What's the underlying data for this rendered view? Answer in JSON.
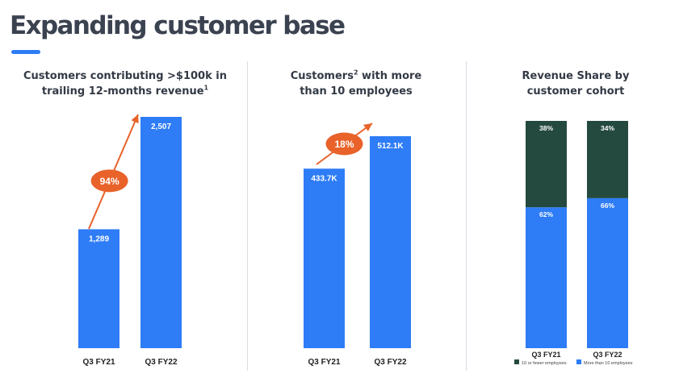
{
  "header": {
    "title": "Expanding customer base"
  },
  "colors": {
    "blue": "#2e7cf6",
    "dark_green": "#244a3f",
    "orange": "#e8622a"
  },
  "panels": [
    {
      "title_line1": "Customers contributing >$100k in",
      "title_line2": "trailing 12-months revenue",
      "title_sup": "1"
    },
    {
      "title_pre": "Customers",
      "title_sup": "2",
      "title_post": " with more",
      "title_line2": "than 10 employees"
    },
    {
      "title_line1": "Revenue Share by",
      "title_line2": "customer cohort"
    }
  ],
  "chart_data": [
    {
      "type": "bar",
      "categories": [
        "Q3 FY21",
        "Q3 FY22"
      ],
      "values": [
        1289,
        2507
      ],
      "data_labels": [
        "1,289",
        "2,507"
      ],
      "annotation": "94%"
    },
    {
      "type": "bar",
      "categories": [
        "Q3 FY21",
        "Q3 FY22"
      ],
      "values": [
        433.7,
        512.1
      ],
      "data_labels": [
        "433.7K",
        "512.1K"
      ],
      "annotation": "18%"
    },
    {
      "type": "bar",
      "stacked": true,
      "categories": [
        "Q3 FY21",
        "Q3 FY22"
      ],
      "series": [
        {
          "name": "More than 10 employees",
          "color": "#2e7cf6",
          "values": [
            62,
            66
          ],
          "labels": [
            "62%",
            "66%"
          ]
        },
        {
          "name": "10 or fewer employees",
          "color": "#244a3f",
          "values": [
            38,
            34
          ],
          "labels": [
            "38%",
            "34%"
          ]
        }
      ],
      "legend_order": [
        1,
        0
      ],
      "legend": "bottom",
      "ylim": [
        0,
        100
      ]
    }
  ]
}
